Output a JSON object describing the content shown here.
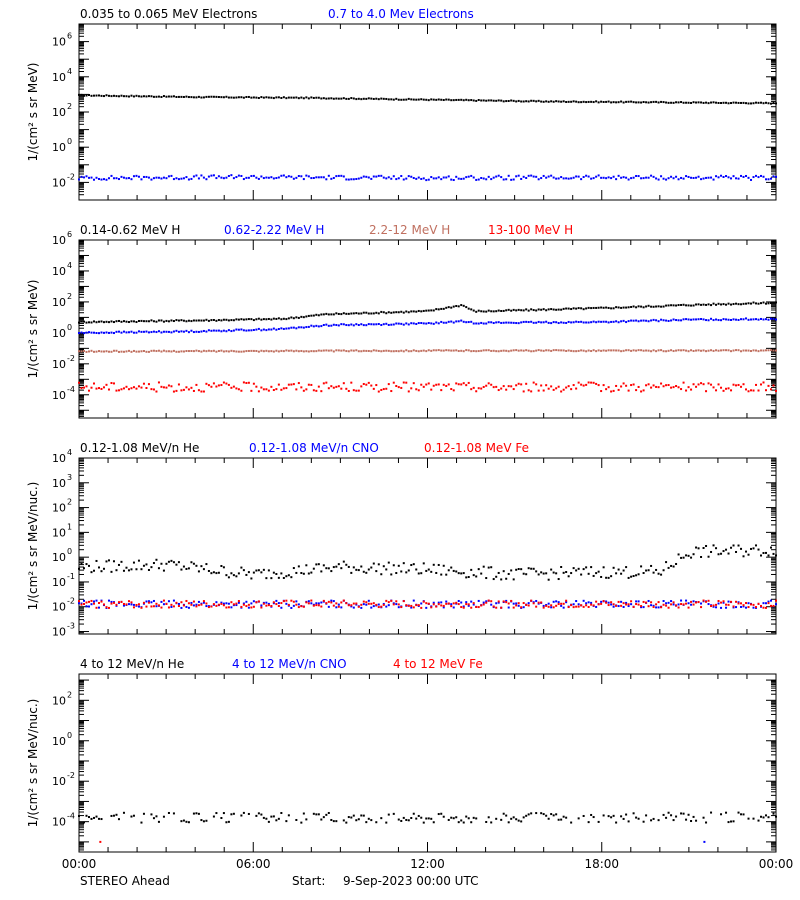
{
  "colors": {
    "black": "#000000",
    "blue": "#0000ff",
    "salmon": "#c07060",
    "red": "#ff0000"
  },
  "x_axis": {
    "ticks": [
      "00:00",
      "06:00",
      "12:00",
      "18:00",
      "00:00"
    ],
    "range_hours": [
      0,
      24
    ]
  },
  "footer": {
    "spacecraft": "STEREO Ahead",
    "start_label": "Start:",
    "start_value": "9-Sep-2023 00:00 UTC"
  },
  "chart_data": [
    {
      "type": "scatter",
      "ylabel": "1/(cm² s sr MeV)",
      "yscale": "log",
      "ylim_exp": [
        -3,
        7
      ],
      "yticks_exp": [
        -2,
        0,
        2,
        4,
        6
      ],
      "legend": [
        {
          "name": "0.035 to 0.065 MeV Electrons",
          "color": "black"
        },
        {
          "name": "0.7 to 4.0 Mev Electrons",
          "color": "blue"
        }
      ],
      "series": [
        {
          "name": "0.035 to 0.065 MeV Electrons",
          "color": "black",
          "x": [
            0,
            4,
            8,
            12,
            16,
            20,
            24
          ],
          "y_exp": [
            2.95,
            2.85,
            2.8,
            2.7,
            2.6,
            2.55,
            2.5
          ],
          "jitter": 0.03
        },
        {
          "name": "0.7 to 4.0 Mev Electrons",
          "color": "blue",
          "x": [
            0,
            6,
            12,
            18,
            24
          ],
          "y_exp": [
            -1.75,
            -1.7,
            -1.75,
            -1.72,
            -1.75
          ],
          "jitter": 0.12
        }
      ]
    },
    {
      "type": "scatter",
      "ylabel": "1/(cm² s sr MeV)",
      "yscale": "log",
      "ylim_exp": [
        -5.5,
        6
      ],
      "yticks_exp": [
        -4,
        -2,
        0,
        2,
        4,
        6
      ],
      "legend": [
        {
          "name": "0.14-0.62 MeV H",
          "color": "black"
        },
        {
          "name": "0.62-2.22 MeV H",
          "color": "blue"
        },
        {
          "name": "2.2-12 MeV H",
          "color": "salmon"
        },
        {
          "name": "13-100 MeV H",
          "color": "red"
        }
      ],
      "series": [
        {
          "name": "0.14-0.62 MeV H",
          "color": "black",
          "x": [
            0,
            4,
            7,
            8.5,
            12,
            13.2,
            13.6,
            14,
            18,
            21,
            24
          ],
          "y_exp": [
            0.7,
            0.8,
            0.9,
            1.2,
            1.4,
            1.8,
            1.4,
            1.4,
            1.6,
            1.8,
            1.95
          ],
          "jitter": 0.05
        },
        {
          "name": "0.62-2.22 MeV H",
          "color": "blue",
          "x": [
            0,
            4,
            7,
            8.5,
            12,
            13.2,
            13.6,
            14,
            18,
            21,
            24
          ],
          "y_exp": [
            0.0,
            0.1,
            0.25,
            0.5,
            0.6,
            0.75,
            0.65,
            0.65,
            0.7,
            0.85,
            0.9
          ],
          "jitter": 0.05
        },
        {
          "name": "2.2-12 MeV H",
          "color": "salmon",
          "x": [
            0,
            12,
            24
          ],
          "y_exp": [
            -1.2,
            -1.15,
            -1.15
          ],
          "jitter": 0.04
        },
        {
          "name": "13-100 MeV H",
          "color": "red",
          "x": [
            0,
            12,
            24
          ],
          "y_exp": [
            -3.5,
            -3.5,
            -3.5
          ],
          "jitter": 0.3
        }
      ]
    },
    {
      "type": "scatter",
      "ylabel": "1/(cm² s sr MeV/nuc.)",
      "yscale": "log",
      "ylim_exp": [
        -3.1,
        4
      ],
      "yticks_exp": [
        -3,
        -2,
        -1,
        0,
        1,
        2,
        3,
        4
      ],
      "legend": [
        {
          "name": "0.12-1.08 MeV/n He",
          "color": "black"
        },
        {
          "name": "0.12-1.08 MeV/n CNO",
          "color": "blue"
        },
        {
          "name": "0.12-1.08 MeV Fe",
          "color": "red"
        }
      ],
      "series": [
        {
          "name": "0.12-1.08 MeV/n He",
          "color": "black",
          "x": [
            0,
            3,
            6,
            9,
            12,
            15,
            18,
            20,
            21,
            24
          ],
          "y_exp": [
            -0.4,
            -0.3,
            -0.7,
            -0.4,
            -0.5,
            -0.7,
            -0.6,
            -0.6,
            0.2,
            0.3
          ],
          "jitter": 0.25
        },
        {
          "name": "0.12-1.08 MeV/n CNO",
          "color": "blue",
          "x": [
            0,
            24
          ],
          "y_exp": [
            -1.9,
            -1.9
          ],
          "jitter": 0.15
        },
        {
          "name": "0.12-1.08 MeV Fe",
          "color": "red",
          "x": [
            0,
            24
          ],
          "y_exp": [
            -1.9,
            -1.9
          ],
          "jitter": 0.15
        }
      ]
    },
    {
      "type": "scatter",
      "ylabel": "1/(cm² s sr MeV/nuc.)",
      "yscale": "log",
      "ylim_exp": [
        -5.5,
        3.3
      ],
      "yticks_exp": [
        -4,
        -2,
        0,
        2
      ],
      "legend": [
        {
          "name": "4 to 12 MeV/n He",
          "color": "black"
        },
        {
          "name": "4 to 12 MeV/n CNO",
          "color": "blue"
        },
        {
          "name": "4 to 12 MeV Fe",
          "color": "red"
        }
      ],
      "series": [
        {
          "name": "4 to 12 MeV/n He",
          "color": "black",
          "x": [
            0,
            24
          ],
          "y_exp": [
            -3.8,
            -3.8
          ],
          "jitter": 0.25
        },
        {
          "name": "4 to 12 MeV/n CNO",
          "color": "blue",
          "x": [
            0,
            24
          ],
          "y_exp": [
            -5.0,
            -5.0
          ],
          "jitter": 0.0,
          "sparse": true
        },
        {
          "name": "4 to 12 MeV Fe",
          "color": "red",
          "x": [
            0,
            24
          ],
          "y_exp": [
            -5.0,
            -5.0
          ],
          "jitter": 0.0,
          "sparse": true
        }
      ]
    }
  ]
}
